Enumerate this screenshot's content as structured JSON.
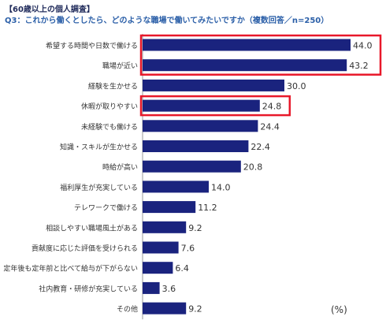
{
  "header": {
    "title": "【60歳以上の個人調査】",
    "question": "Q3：これから働くとしたら、どのような職場で働いてみたいですか（複数回答／n=250）"
  },
  "colors": {
    "bar": "#1a237e",
    "highlight": "#e8182a",
    "axis": "#9a9a9a"
  },
  "chart_data": {
    "type": "bar",
    "orientation": "horizontal",
    "unit": "(%)",
    "xlim": [
      0,
      50
    ],
    "grid": false,
    "categories": [
      "希望する時間や日数で働ける",
      "職場が近い",
      "経験を生かせる",
      "休暇が取りやすい",
      "未経験でも働ける",
      "知識・スキルが生かせる",
      "時給が高い",
      "福利厚生が充実している",
      "テレワークで働ける",
      "相談しやすい職場風土がある",
      "貢献度に応じた評価を受けられる",
      "定年後も定年前と比べて給与が下がらない",
      "社内教育・研修が充実している",
      "その他"
    ],
    "values": [
      44.0,
      43.2,
      30.0,
      24.8,
      24.4,
      22.4,
      20.8,
      14.0,
      11.2,
      9.2,
      7.6,
      6.4,
      3.6,
      9.2
    ],
    "value_labels": [
      "44.0",
      "43.2",
      "30.0",
      "24.8",
      "24.4",
      "22.4",
      "20.8",
      "14.0",
      "11.2",
      "9.2",
      "7.6",
      "6.4",
      "3.6",
      "9.2"
    ],
    "highlight_groups": [
      [
        0,
        1
      ],
      [
        3
      ]
    ]
  }
}
